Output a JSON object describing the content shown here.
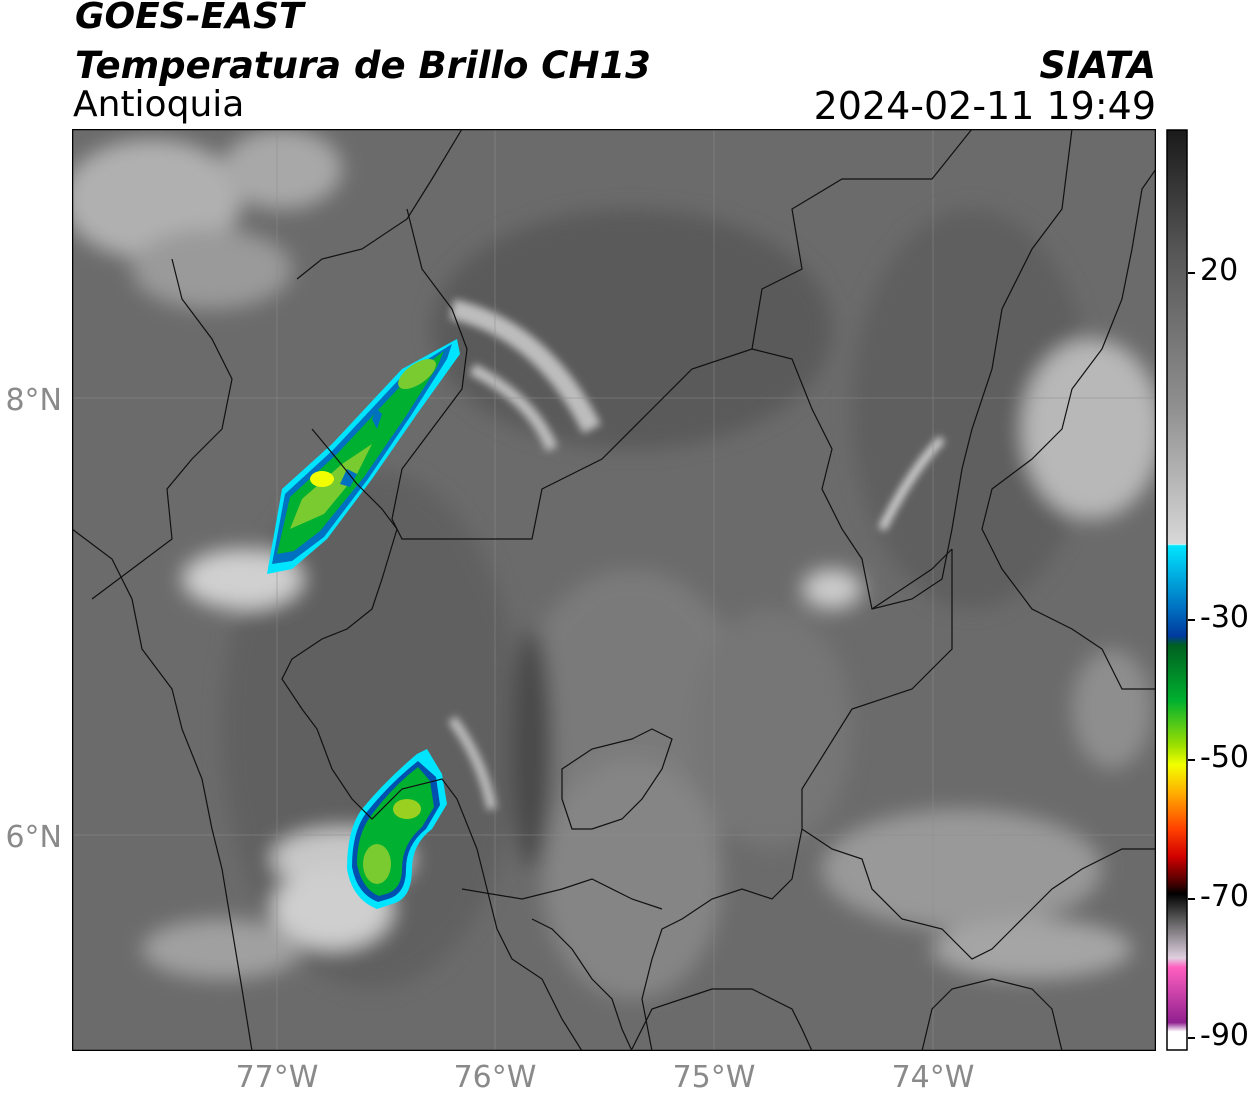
{
  "header": {
    "satellite": "GOES-EAST",
    "product": "Temperatura de Brillo CH13",
    "region": "Antioquia",
    "organization": "SIATA",
    "timestamp": "2024-02-11 19:49"
  },
  "map": {
    "lat_labels": [
      "8°N",
      "6°N"
    ],
    "lon_labels": [
      "77°W",
      "76°W",
      "75°W",
      "74°W"
    ]
  },
  "colorbar": {
    "tick_labels": [
      "20",
      "-30",
      "-50",
      "-70",
      "-90"
    ],
    "colors": {
      "warm": "#2b2b2b",
      "gray_mid": "#9a9a9a",
      "white": "#f5f5f5",
      "cyan": "#00e5ff",
      "blue": "#003a9e",
      "green": "#00b030",
      "yellow": "#f2ff00",
      "orange": "#ff9a00",
      "red": "#e60000",
      "black": "#000000",
      "pink": "#e060c0",
      "purple": "#8a1a8a"
    }
  }
}
